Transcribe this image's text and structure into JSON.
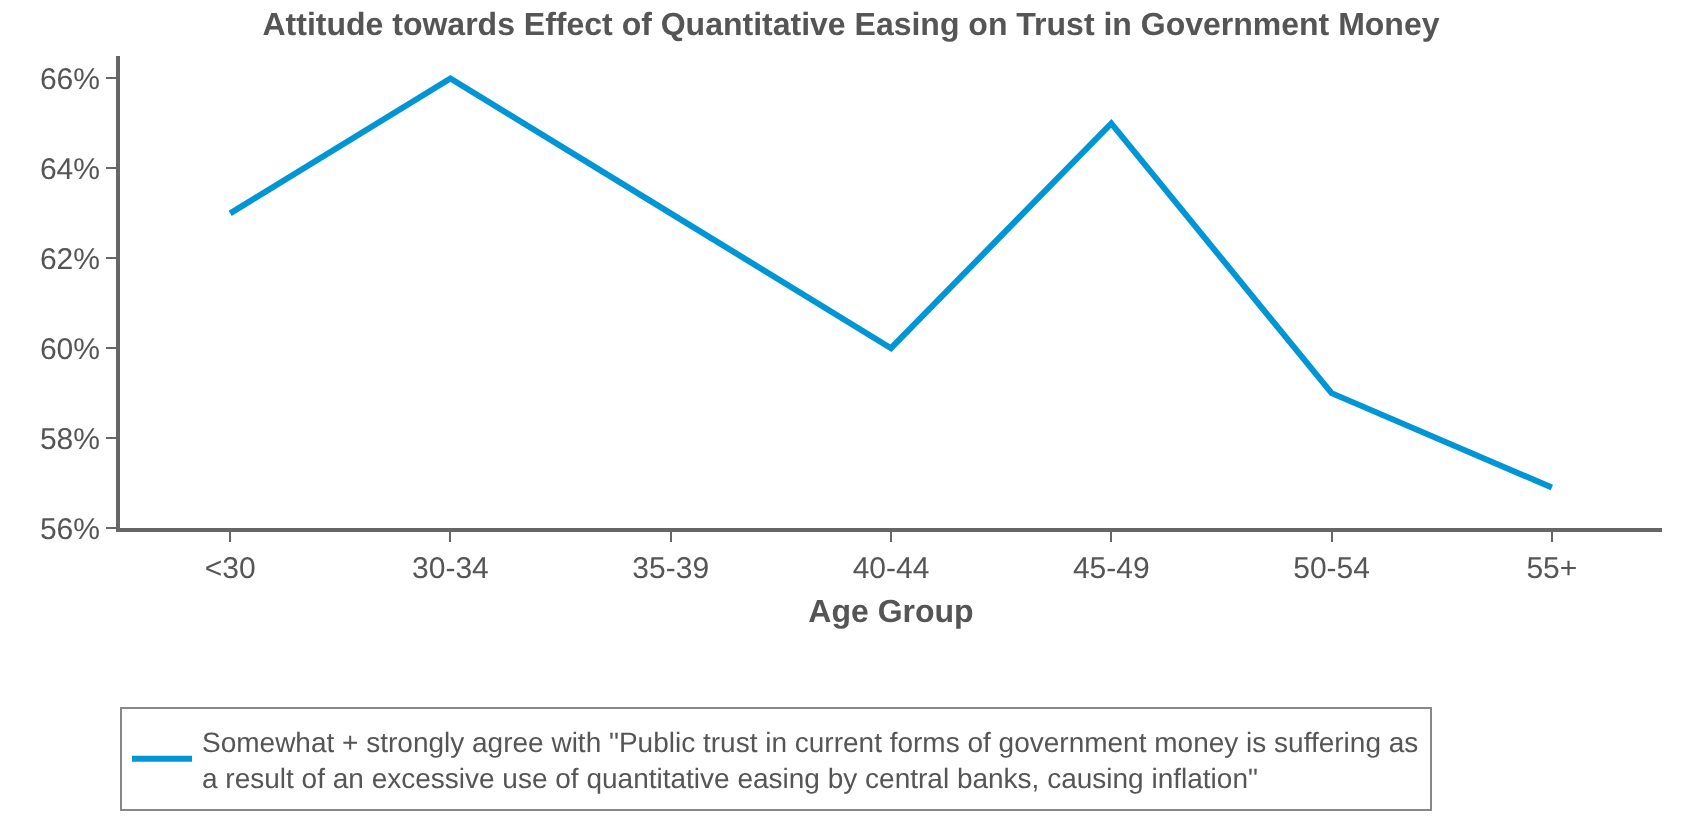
{
  "chart_data": {
    "type": "line",
    "title": "Attitude towards Effect of Quantitative Easing on Trust in Government Money",
    "xlabel": "Age Group",
    "categories": [
      "<30",
      "30-34",
      "35-39",
      "40-44",
      "45-49",
      "50-54",
      "55+"
    ],
    "series": [
      {
        "name": "Somewhat + strongly agree with \"Public trust in current forms of government money is suffering as a result of an excessive use of quantitative easing by central banks, causing inflation\"",
        "color": "#0096d6",
        "values": [
          63,
          66,
          63,
          60,
          65,
          59,
          56.9
        ]
      }
    ],
    "ylim": [
      56,
      66.5
    ],
    "yticks": [
      {
        "value": 56,
        "label": "56%"
      },
      {
        "value": 58,
        "label": "58%"
      },
      {
        "value": 60,
        "label": "60%"
      },
      {
        "value": 62,
        "label": "62%"
      },
      {
        "value": 64,
        "label": "64%"
      },
      {
        "value": 66,
        "label": "66%"
      }
    ],
    "legend": "bottom",
    "marker": "none",
    "line_style": "solid"
  }
}
